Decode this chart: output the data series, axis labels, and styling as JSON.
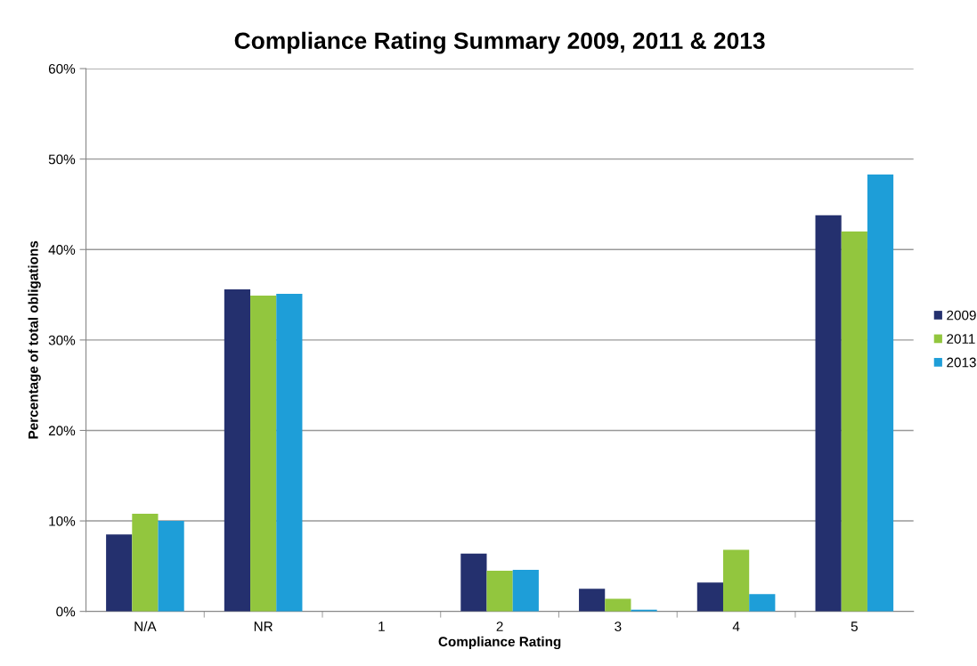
{
  "chart_data": {
    "type": "bar",
    "title": "Compliance Rating Summary 2009, 2011 & 2013",
    "xlabel": "Compliance Rating",
    "ylabel": "Percentage of total obligations",
    "categories": [
      "N/A",
      "NR",
      "1",
      "2",
      "3",
      "4",
      "5"
    ],
    "series": [
      {
        "name": "2009",
        "color": "#24306e",
        "values": [
          8.5,
          35.6,
          0,
          6.4,
          2.5,
          3.2,
          43.8
        ]
      },
      {
        "name": "2011",
        "color": "#92c63e",
        "values": [
          10.8,
          34.9,
          0,
          4.5,
          1.4,
          6.8,
          42.0
        ]
      },
      {
        "name": "2013",
        "color": "#1e9ed8",
        "values": [
          10.0,
          35.1,
          0,
          4.6,
          0.2,
          1.9,
          48.3
        ]
      }
    ],
    "ylim": [
      0,
      60
    ],
    "yticks": [
      {
        "value": 0,
        "label": "0%"
      },
      {
        "value": 10,
        "label": "10%"
      },
      {
        "value": 20,
        "label": "20%"
      },
      {
        "value": 30,
        "label": "30%"
      },
      {
        "value": 40,
        "label": "40%"
      },
      {
        "value": 50,
        "label": "50%"
      },
      {
        "value": 60,
        "label": "60%"
      }
    ],
    "grid": "y",
    "legend": "right"
  }
}
